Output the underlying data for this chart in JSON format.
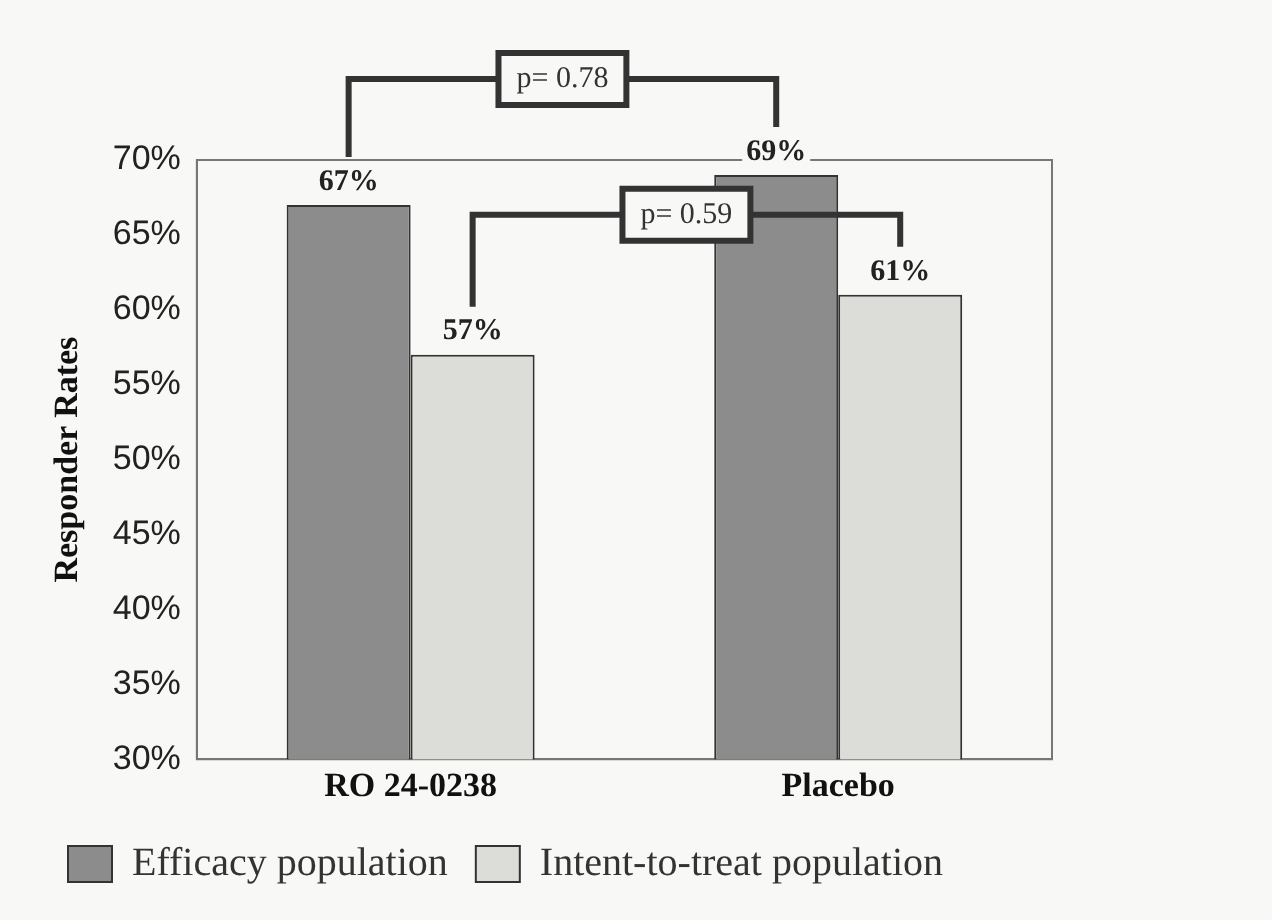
{
  "chart_data": {
    "type": "bar",
    "ylabel": "Responder Rates",
    "categories": [
      "RO 24-0238",
      "Placebo"
    ],
    "series": [
      {
        "name": "Efficacy population",
        "color": "#8c8c8c",
        "values": [
          67,
          69
        ],
        "value_labels": [
          "67%",
          "69%"
        ]
      },
      {
        "name": "Intent-to-treat population",
        "color": "#dcdcd8",
        "values": [
          57,
          61
        ],
        "value_labels": [
          "57%",
          "61%"
        ]
      }
    ],
    "ylim": [
      30,
      70
    ],
    "yticks": [
      {
        "value": 30,
        "label": "30%"
      },
      {
        "value": 35,
        "label": "35%"
      },
      {
        "value": 40,
        "label": "40%"
      },
      {
        "value": 45,
        "label": "45%"
      },
      {
        "value": 50,
        "label": "50%"
      },
      {
        "value": 55,
        "label": "55%"
      },
      {
        "value": 60,
        "label": "60%"
      },
      {
        "value": 65,
        "label": "65%"
      },
      {
        "value": 70,
        "label": "70%"
      }
    ],
    "annotations": [
      "p= 0.78",
      "p= 0.59"
    ],
    "grid": false,
    "legend": "bottom"
  }
}
